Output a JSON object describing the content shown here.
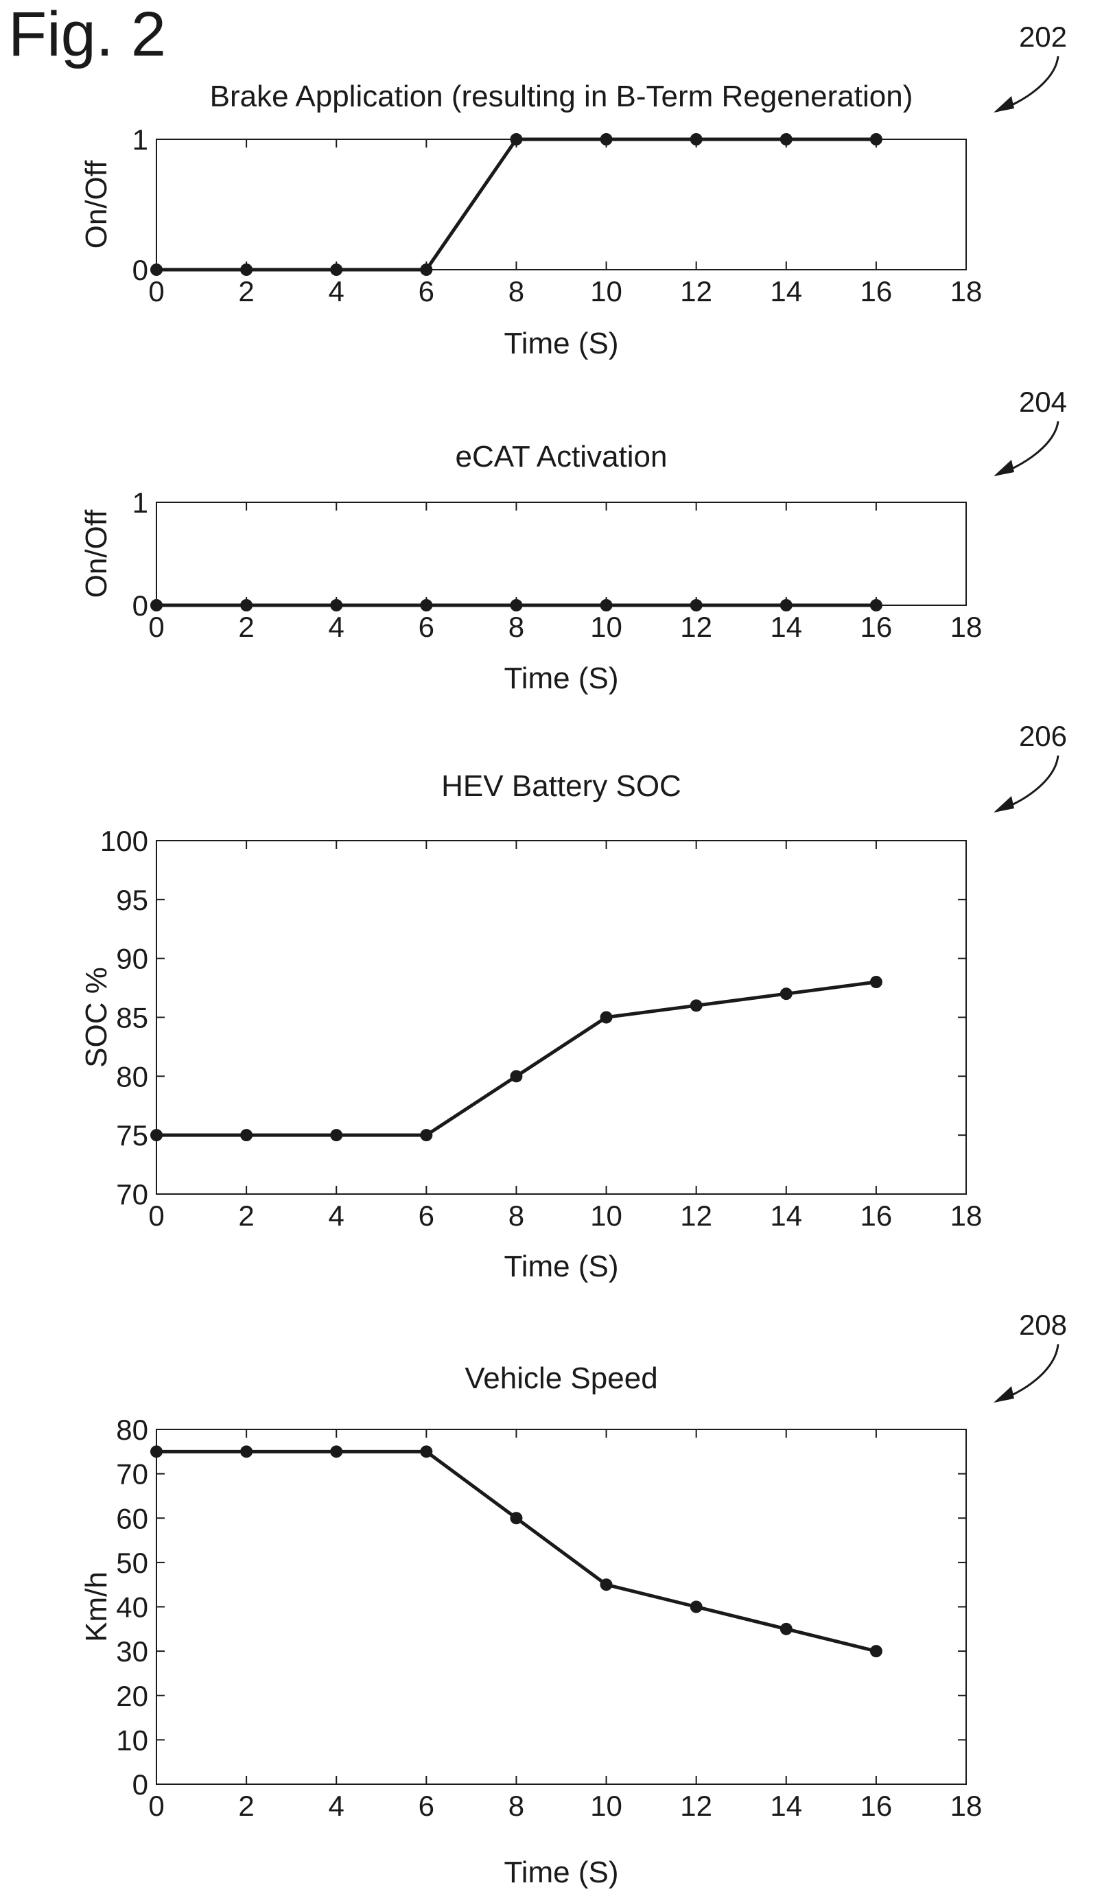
{
  "figure_label": "Fig. 2",
  "chart_data": [
    {
      "ref": "202",
      "type": "line",
      "title": "Brake Application (resulting in B-Term Regeneration)",
      "xlabel": "Time (S)",
      "ylabel": "On/Off",
      "xlim": [
        0,
        18
      ],
      "ylim": [
        0,
        1
      ],
      "xticks": [
        "0",
        "2",
        "4",
        "6",
        "8",
        "10",
        "12",
        "14",
        "16",
        "18"
      ],
      "yticks": [
        "0",
        "1"
      ],
      "grid": false,
      "x": [
        0,
        2,
        4,
        6,
        8,
        10,
        12,
        14,
        16
      ],
      "values": [
        0,
        0,
        0,
        0,
        1,
        1,
        1,
        1,
        1
      ]
    },
    {
      "ref": "204",
      "type": "line",
      "title": "eCAT Activation",
      "xlabel": "Time (S)",
      "ylabel": "On/Off",
      "xlim": [
        0,
        18
      ],
      "ylim": [
        0,
        1
      ],
      "xticks": [
        "0",
        "2",
        "4",
        "6",
        "8",
        "10",
        "12",
        "14",
        "16",
        "18"
      ],
      "yticks": [
        "0",
        "1"
      ],
      "grid": false,
      "x": [
        0,
        2,
        4,
        6,
        8,
        10,
        12,
        14,
        16
      ],
      "values": [
        0,
        0,
        0,
        0,
        0,
        0,
        0,
        0,
        0
      ]
    },
    {
      "ref": "206",
      "type": "line",
      "title": "HEV Battery SOC",
      "xlabel": "Time (S)",
      "ylabel": "SOC %",
      "xlim": [
        0,
        18
      ],
      "ylim": [
        70,
        100
      ],
      "xticks": [
        "0",
        "2",
        "4",
        "6",
        "8",
        "10",
        "12",
        "14",
        "16",
        "18"
      ],
      "yticks": [
        "70",
        "75",
        "80",
        "85",
        "90",
        "95",
        "100"
      ],
      "grid": false,
      "x": [
        0,
        2,
        4,
        6,
        8,
        10,
        12,
        14,
        16
      ],
      "values": [
        75,
        75,
        75,
        75,
        80,
        85,
        86,
        87,
        88
      ]
    },
    {
      "ref": "208",
      "type": "line",
      "title": "Vehicle Speed",
      "xlabel": "Time (S)",
      "ylabel": "Km/h",
      "xlim": [
        0,
        18
      ],
      "ylim": [
        0,
        80
      ],
      "xticks": [
        "0",
        "2",
        "4",
        "6",
        "8",
        "10",
        "12",
        "14",
        "16",
        "18"
      ],
      "yticks": [
        "0",
        "10",
        "20",
        "30",
        "40",
        "50",
        "60",
        "70",
        "80"
      ],
      "grid": false,
      "x": [
        0,
        2,
        4,
        6,
        8,
        10,
        12,
        14,
        16
      ],
      "values": [
        75,
        75,
        75,
        75,
        60,
        45,
        40,
        35,
        30
      ]
    }
  ]
}
